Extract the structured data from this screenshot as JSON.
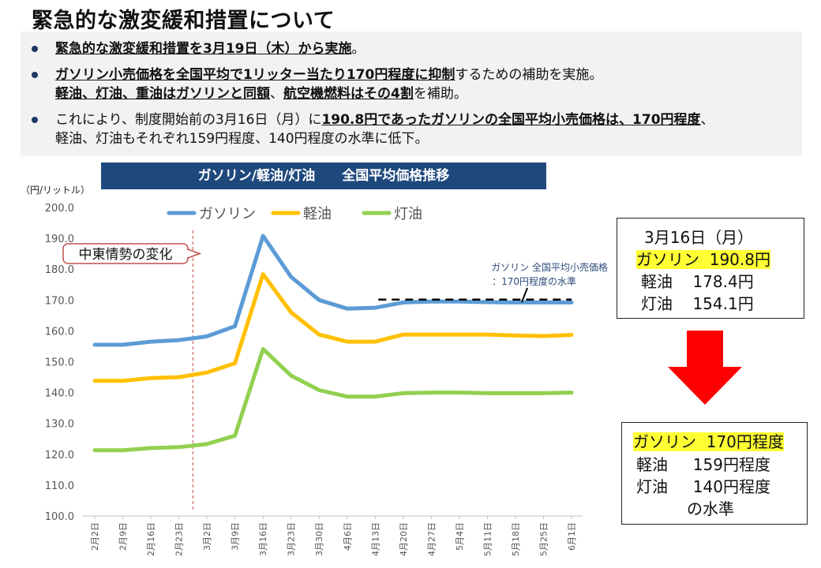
{
  "title": "緊急的な激変緩和措置について",
  "bullets": [
    {
      "parts": [
        {
          "t": "緊急的な激変緩和措置を3月19日（木）から実施",
          "b": true
        },
        {
          "t": "。",
          "b": false
        }
      ]
    },
    {
      "parts": [
        {
          "t": "ガソリン小売価格を全国平均で1リッター当たり170円程度に抑制",
          "b": true
        },
        {
          "t": "するための補助を実施。",
          "b": false
        }
      ]
    },
    {
      "parts": [
        {
          "t": "軽油、灯油、重油はガソリンと同額",
          "b": true
        },
        {
          "t": "、",
          "b": false
        },
        {
          "t": "航空機燃料はその4割",
          "b": true
        },
        {
          "t": "を補助。",
          "b": false
        }
      ]
    },
    {
      "parts": [
        {
          "t": "これにより、制度開始前の3月16日（月）に",
          "b": false
        },
        {
          "t": "190.8円であったガソリンの全国平均小売価格は、170円程度",
          "b": true
        },
        {
          "t": "、",
          "b": false
        }
      ]
    },
    {
      "parts": [
        {
          "t": "軽油、灯油もそれぞれ159円程度、140円程度の水準に低下。",
          "b": false
        }
      ]
    }
  ],
  "chart_data": {
    "type": "line",
    "title": "ガソリン/軽油/灯油　　全国平均価格推移",
    "ylabel": "（円/リットル）",
    "xlabel": "",
    "ylim": [
      100,
      200
    ],
    "yticks": [
      "100.0",
      "110.0",
      "120.0",
      "130.0",
      "140.0",
      "150.0",
      "160.0",
      "170.0",
      "180.0",
      "190.0",
      "200.0"
    ],
    "categories": [
      "2月2日",
      "2月9日",
      "2月16日",
      "2月23日",
      "3月2日",
      "3月9日",
      "3月16日",
      "3月23日",
      "3月30日",
      "4月6日",
      "4月13日",
      "4月20日",
      "4月27日",
      "5月4日",
      "5月11日",
      "5月18日",
      "5月25日",
      "6月1日"
    ],
    "series": [
      {
        "name": "ガソリン",
        "color": "#5b9bd5",
        "values": [
          155.5,
          155.5,
          156.5,
          157.0,
          158.2,
          161.5,
          190.8,
          177.5,
          170.0,
          167.2,
          167.5,
          169.2,
          169.5,
          169.5,
          169.3,
          169.2,
          169.2,
          169.2
        ]
      },
      {
        "name": "軽油",
        "color": "#ffc000",
        "values": [
          143.8,
          143.8,
          144.7,
          145.0,
          146.5,
          149.5,
          178.4,
          166.0,
          158.8,
          156.5,
          156.5,
          158.8,
          158.8,
          158.8,
          158.8,
          158.5,
          158.3,
          158.7
        ]
      },
      {
        "name": "灯油",
        "color": "#92d050",
        "values": [
          121.3,
          121.3,
          122.0,
          122.3,
          123.3,
          126.0,
          154.1,
          145.5,
          140.8,
          138.7,
          138.7,
          139.8,
          140.0,
          140.0,
          139.8,
          139.8,
          139.8,
          140.0
        ]
      }
    ],
    "legend_position": "top",
    "grid": false,
    "event_line": {
      "after_index": 3,
      "label": "中東情勢の変化"
    },
    "target_line": {
      "value": 170,
      "from_index": 10,
      "to_index": 17,
      "label_lines": [
        "ガソリン 全国平均小売価格",
        "：170円程度の水準"
      ]
    }
  },
  "before_box": {
    "heading": "3月16日（月）",
    "rows": [
      {
        "name": "ガソリン",
        "value": "190.8円",
        "highlight": true
      },
      {
        "name": "軽油",
        "value": "178.4円",
        "highlight": false
      },
      {
        "name": "灯油",
        "value": "154.1円",
        "highlight": false
      }
    ]
  },
  "after_box": {
    "rows": [
      {
        "name": "ガソリン",
        "value": "170円程度",
        "highlight": true
      },
      {
        "name": "軽油",
        "value": "159円程度",
        "highlight": false
      },
      {
        "name": "灯油",
        "value": "140円程度",
        "highlight": false
      }
    ],
    "footer": "の水準"
  },
  "colors": {
    "arrow": "#ff0000",
    "title_bar": "#1f497d",
    "bullet": "#1f3864",
    "highlight": "#ffff33",
    "event_line": "#c0504d"
  }
}
